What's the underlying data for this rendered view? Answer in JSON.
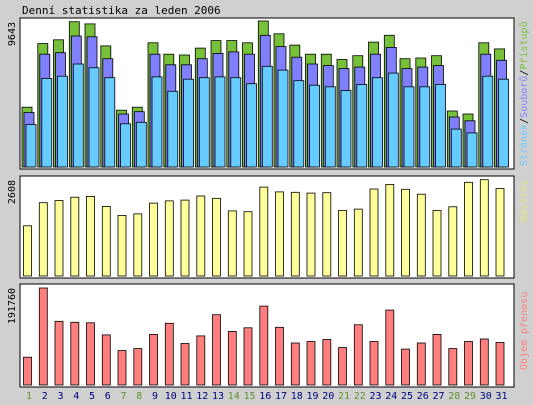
{
  "title": "Denní statistika za leden 2006",
  "colors": {
    "hits": "#77c039",
    "files": "#8080ff",
    "pages": "#66ccff",
    "visits": "#ffff99",
    "kbytes": "#ff7f7f",
    "weekday": "#000080",
    "weekend": "#609030",
    "panel_bg": "#ffffff",
    "frame": "#d0d0d0"
  },
  "chart_data": [
    {
      "type": "bar",
      "ylabel_max": "9643",
      "ymax": 9643,
      "legend": {
        "pages": "Stránek",
        "sep1": "/",
        "files": "Souborů",
        "sep2": "/",
        "hits": "Přístupů"
      },
      "categories": [
        "1",
        "2",
        "3",
        "4",
        "5",
        "6",
        "7",
        "8",
        "9",
        "10",
        "11",
        "12",
        "13",
        "14",
        "15",
        "16",
        "17",
        "18",
        "19",
        "20",
        "21",
        "22",
        "23",
        "24",
        "25",
        "26",
        "27",
        "28",
        "29",
        "30",
        "31"
      ],
      "weekend": [
        true,
        false,
        false,
        false,
        false,
        false,
        true,
        true,
        false,
        false,
        false,
        false,
        false,
        true,
        true,
        false,
        false,
        false,
        false,
        false,
        true,
        true,
        false,
        false,
        false,
        false,
        false,
        true,
        true,
        false,
        false
      ],
      "series": [
        {
          "name": "Přístupů",
          "values": [
            3950,
            8150,
            8400,
            9600,
            9450,
            8000,
            3750,
            3950,
            8200,
            7450,
            7400,
            7850,
            8350,
            8350,
            8200,
            9643,
            8800,
            8050,
            7450,
            7450,
            7100,
            7350,
            8250,
            8700,
            7150,
            7200,
            7350,
            3700,
            3500,
            8200,
            7800
          ]
        },
        {
          "name": "Souborů",
          "values": [
            3600,
            7450,
            7550,
            8650,
            8600,
            7150,
            3500,
            3650,
            7450,
            6750,
            6750,
            7150,
            7500,
            7600,
            7450,
            8700,
            7950,
            7250,
            6800,
            6700,
            6500,
            6600,
            7450,
            7900,
            6500,
            6600,
            6700,
            3300,
            3050,
            7450,
            7050
          ]
        },
        {
          "name": "Stránek",
          "values": [
            2800,
            5850,
            6000,
            6800,
            6550,
            5900,
            2850,
            2950,
            5950,
            5000,
            5800,
            5900,
            5950,
            5900,
            5500,
            6650,
            6400,
            5700,
            5400,
            5300,
            5050,
            5450,
            5900,
            6200,
            5300,
            5300,
            5450,
            2500,
            2250,
            6000,
            5800
          ]
        }
      ]
    },
    {
      "type": "bar",
      "ylabel_max": "2608",
      "ymax": 2608,
      "legend": {
        "visits": "Návštěv"
      },
      "categories": [
        "1",
        "2",
        "3",
        "4",
        "5",
        "6",
        "7",
        "8",
        "9",
        "10",
        "11",
        "12",
        "13",
        "14",
        "15",
        "16",
        "17",
        "18",
        "19",
        "20",
        "21",
        "22",
        "23",
        "24",
        "25",
        "26",
        "27",
        "28",
        "29",
        "30",
        "31"
      ],
      "series": [
        {
          "name": "Návštěv",
          "values": [
            1350,
            1970,
            2030,
            2120,
            2140,
            1870,
            1630,
            1670,
            1960,
            2020,
            2040,
            2150,
            2090,
            1750,
            1730,
            2390,
            2260,
            2250,
            2230,
            2240,
            1760,
            1800,
            2340,
            2460,
            2330,
            2200,
            1760,
            1860,
            2520,
            2590,
            2350
          ]
        }
      ]
    },
    {
      "type": "bar",
      "ylabel_max": "191760",
      "ymax": 191760,
      "legend": {
        "kbytes": "Objem přenosu"
      },
      "categories": [
        "1",
        "2",
        "3",
        "4",
        "5",
        "6",
        "7",
        "8",
        "9",
        "10",
        "11",
        "12",
        "13",
        "14",
        "15",
        "16",
        "17",
        "18",
        "19",
        "20",
        "21",
        "22",
        "23",
        "24",
        "25",
        "26",
        "27",
        "28",
        "29",
        "30",
        "31"
      ],
      "series": [
        {
          "name": "Objem přenosu",
          "values": [
            55000,
            191760,
            126000,
            124000,
            123000,
            99000,
            68000,
            72000,
            100000,
            122000,
            82000,
            97000,
            139000,
            106000,
            113000,
            156000,
            114000,
            83000,
            86000,
            90000,
            74000,
            119000,
            86000,
            148000,
            71000,
            83000,
            100000,
            72000,
            86000,
            91000,
            84000
          ]
        }
      ]
    }
  ]
}
